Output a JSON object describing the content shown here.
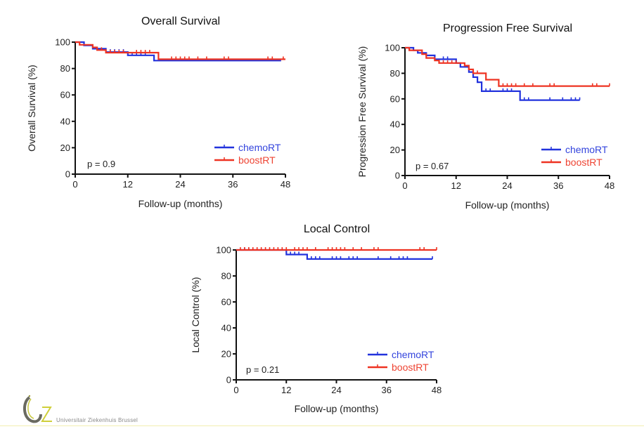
{
  "colors": {
    "chemoRT": "#2233dd",
    "boostRT": "#ee3322",
    "axis": "#111111",
    "legend_chemo_text": "#3344dd",
    "legend_boost_text": "#ee4433"
  },
  "logo": {
    "text": "Universitair Ziekenhuis Brussel",
    "icon": "uz-brussel-logo-icon"
  },
  "chart_data": [
    {
      "type": "line",
      "subtype": "kaplan-meier",
      "title": "Overall Survival",
      "xlabel": "Follow-up (months)",
      "ylabel": "Overall Survival (%)",
      "xlim": [
        0,
        48
      ],
      "ylim": [
        0,
        100
      ],
      "xticks": [
        "0",
        "12",
        "24",
        "36",
        "48"
      ],
      "yticks": [
        "0",
        "20",
        "40",
        "60",
        "80",
        "100"
      ],
      "annotation": "p = 0.9",
      "legend": [
        "chemoRT",
        "boostRT"
      ],
      "legend_position": "bottom-right",
      "grid": false,
      "series": [
        {
          "name": "chemoRT",
          "steps": [
            [
              0,
              100
            ],
            [
              2,
              100
            ],
            [
              2,
              97.5
            ],
            [
              4,
              97.5
            ],
            [
              4,
              95
            ],
            [
              7,
              95
            ],
            [
              7,
              92.5
            ],
            [
              12,
              92.5
            ],
            [
              12,
              90
            ],
            [
              18,
              90
            ],
            [
              18,
              86
            ],
            [
              47,
              86
            ]
          ],
          "censors": [
            8,
            9,
            10,
            11,
            13,
            14,
            15,
            16
          ]
        },
        {
          "name": "boostRT",
          "steps": [
            [
              0,
              100
            ],
            [
              1,
              100
            ],
            [
              1,
              98
            ],
            [
              4,
              98
            ],
            [
              4,
              96
            ],
            [
              5,
              96
            ],
            [
              5,
              94
            ],
            [
              7,
              94
            ],
            [
              7,
              92
            ],
            [
              19,
              92
            ],
            [
              19,
              87
            ],
            [
              48,
              87
            ]
          ],
          "censors": [
            6,
            8,
            9,
            10,
            11,
            14,
            15,
            16,
            17,
            22,
            23,
            24,
            25,
            26,
            28,
            30,
            34,
            35,
            44,
            45,
            47.5
          ]
        }
      ]
    },
    {
      "type": "line",
      "subtype": "kaplan-meier",
      "title": "Progression Free Survival",
      "xlabel": "Follow-up (months)",
      "ylabel": "Progression Free Survival (%)",
      "xlim": [
        0,
        48
      ],
      "ylim": [
        0,
        100
      ],
      "xticks": [
        "0",
        "12",
        "24",
        "36",
        "48"
      ],
      "yticks": [
        "0",
        "20",
        "40",
        "60",
        "80",
        "100"
      ],
      "annotation": "p = 0.67",
      "legend": [
        "chemoRT",
        "boostRT"
      ],
      "legend_position": "bottom-right",
      "grid": false,
      "series": [
        {
          "name": "chemoRT",
          "steps": [
            [
              0,
              100
            ],
            [
              2,
              100
            ],
            [
              2,
              98
            ],
            [
              3,
              98
            ],
            [
              3,
              96
            ],
            [
              5,
              96
            ],
            [
              5,
              94
            ],
            [
              7,
              94
            ],
            [
              7,
              91
            ],
            [
              12,
              91
            ],
            [
              12,
              88
            ],
            [
              13,
              88
            ],
            [
              13,
              85
            ],
            [
              15,
              85
            ],
            [
              15,
              81
            ],
            [
              16,
              81
            ],
            [
              16,
              77
            ],
            [
              17,
              77
            ],
            [
              17,
              73
            ],
            [
              18,
              73
            ],
            [
              18,
              66
            ],
            [
              27,
              66
            ],
            [
              27,
              59
            ],
            [
              41,
              59
            ]
          ],
          "censors": [
            9,
            10,
            19,
            20,
            23,
            24,
            25,
            28,
            29,
            34,
            37,
            39,
            40,
            41
          ]
        },
        {
          "name": "boostRT",
          "steps": [
            [
              0,
              100
            ],
            [
              1,
              100
            ],
            [
              1,
              98
            ],
            [
              4,
              98
            ],
            [
              4,
              95
            ],
            [
              5,
              95
            ],
            [
              5,
              92
            ],
            [
              7,
              92
            ],
            [
              7,
              90
            ],
            [
              8,
              90
            ],
            [
              8,
              88
            ],
            [
              14,
              88
            ],
            [
              14,
              86
            ],
            [
              15,
              86
            ],
            [
              15,
              83
            ],
            [
              16,
              83
            ],
            [
              16,
              80
            ],
            [
              19,
              80
            ],
            [
              19,
              75
            ],
            [
              22,
              75
            ],
            [
              22,
              70
            ],
            [
              48,
              70
            ]
          ],
          "censors": [
            9,
            10,
            11,
            12,
            14,
            17,
            23,
            24,
            25,
            26,
            28,
            30,
            34,
            35,
            44,
            45,
            48
          ]
        }
      ]
    },
    {
      "type": "line",
      "subtype": "kaplan-meier",
      "title": "Local Control",
      "xlabel": "Follow-up (months)",
      "ylabel": "Local Control (%)",
      "xlim": [
        0,
        48
      ],
      "ylim": [
        0,
        100
      ],
      "xticks": [
        "0",
        "12",
        "24",
        "36",
        "48"
      ],
      "yticks": [
        "0",
        "20",
        "40",
        "60",
        "80",
        "100"
      ],
      "annotation": "p = 0.21",
      "legend": [
        "chemoRT",
        "boostRT"
      ],
      "legend_position": "bottom-right",
      "grid": false,
      "series": [
        {
          "name": "chemoRT",
          "steps": [
            [
              0,
              100
            ],
            [
              12,
              100
            ],
            [
              12,
              96.5
            ],
            [
              17,
              96.5
            ],
            [
              17,
              93
            ],
            [
              47,
              93
            ]
          ],
          "censors": [
            2,
            3,
            13,
            14,
            15,
            18,
            19,
            20,
            23,
            24,
            25,
            27,
            28,
            29,
            34,
            37,
            39,
            40,
            41,
            47
          ]
        },
        {
          "name": "boostRT",
          "steps": [
            [
              0,
              100
            ],
            [
              48,
              100
            ]
          ],
          "censors": [
            1,
            2,
            3,
            4,
            5,
            6,
            7,
            8,
            9,
            10,
            11,
            12,
            14,
            15,
            16,
            17,
            19,
            22,
            23,
            24,
            25,
            26,
            28,
            30,
            33,
            34,
            44,
            45,
            48
          ]
        }
      ]
    }
  ]
}
